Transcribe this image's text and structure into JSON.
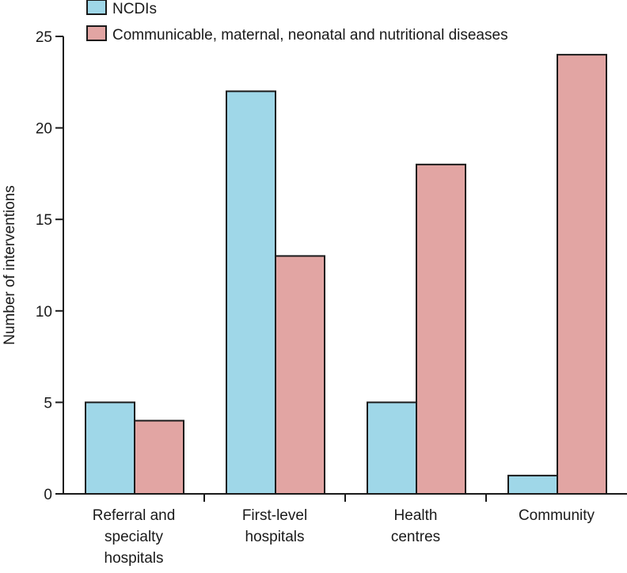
{
  "chart_data": {
    "type": "bar",
    "title": "",
    "xlabel": "",
    "ylabel": "Number of interventions",
    "ylim": [
      0,
      25
    ],
    "yticks": [
      0,
      5,
      10,
      15,
      20,
      25
    ],
    "grid": false,
    "legend_position": "top-left",
    "categories": [
      [
        "Referral and",
        "specialty",
        "hospitals"
      ],
      [
        "First-level",
        "hospitals"
      ],
      [
        "Health",
        "centres"
      ],
      [
        "Community"
      ]
    ],
    "series": [
      {
        "name": "NCDIs",
        "color": "#9fd7e8",
        "values": [
          5,
          22,
          5,
          1
        ]
      },
      {
        "name": "Communicable, maternal, neonatal and nutritional diseases",
        "color": "#e2a5a3",
        "values": [
          4,
          13,
          18,
          24
        ]
      }
    ]
  }
}
